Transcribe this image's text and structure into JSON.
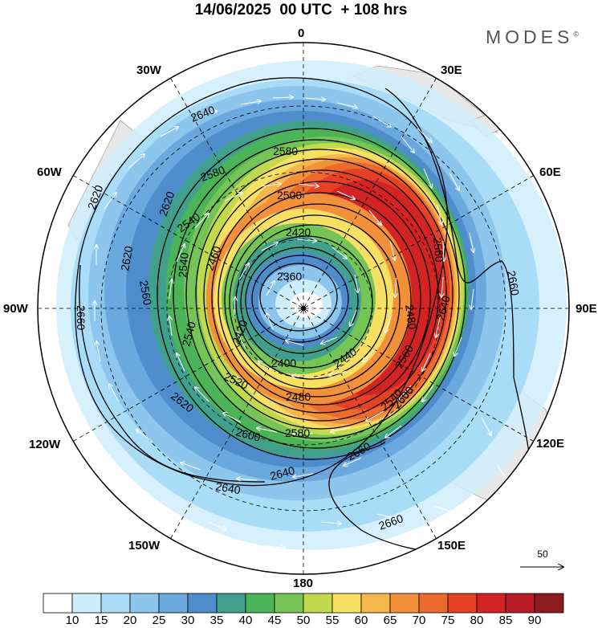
{
  "title": "14/06/2025  00 UTC  + 108 hrs",
  "brand": "MODES",
  "brand_mark": "©",
  "longitude_labels": {
    "lon_0": "0",
    "lon_30e": "30E",
    "lon_60e": "60E",
    "lon_90e": "90E",
    "lon_120e": "120E",
    "lon_150e": "150E",
    "lon_180": "180",
    "lon_150w": "150W",
    "lon_120w": "120W",
    "lon_90w": "90W",
    "lon_60w": "60W",
    "lon_30w": "30W"
  },
  "vector_reference": "50",
  "contour_labels": [
    "2640",
    "2620",
    "2580",
    "2580",
    "2560",
    "2620",
    "2620",
    "2500",
    "2540",
    "2420",
    "2560",
    "2540",
    "2360",
    "2480",
    "2460",
    "2640",
    "2540",
    "2420",
    "2400",
    "2440",
    "2520",
    "2480",
    "2580",
    "2600",
    "2620",
    "2640",
    "2640",
    "2660",
    "2660",
    "2600",
    "2560",
    "2540",
    "2660",
    "2660"
  ],
  "colorbar": {
    "colors": [
      "#ffffff",
      "#cfeefc",
      "#a9dcf6",
      "#8cc6ec",
      "#6aa8dd",
      "#4f8ccc",
      "#41a08d",
      "#4bb458",
      "#74c556",
      "#c1d94c",
      "#f8e162",
      "#f6b84e",
      "#f29139",
      "#ec6a2d",
      "#e64125",
      "#d42324",
      "#b81d27",
      "#8e1c1f"
    ],
    "ticks": [
      "10",
      "15",
      "20",
      "25",
      "30",
      "35",
      "40",
      "45",
      "50",
      "55",
      "60",
      "65",
      "70",
      "75",
      "80",
      "85",
      "90"
    ]
  },
  "colors": {
    "land": "#e8e8e8",
    "contour": "#000000",
    "vectors": "#ffffff"
  }
}
